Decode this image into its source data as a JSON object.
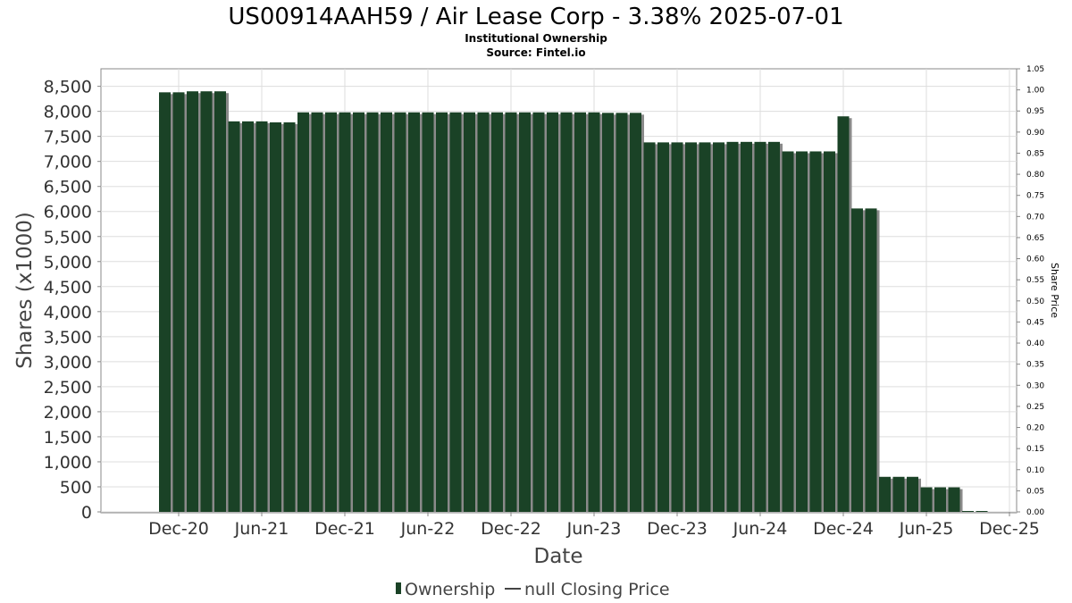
{
  "chart_data": {
    "type": "bar",
    "title": "US00914AAH59 / Air Lease Corp - 3.38% 2025-07-01",
    "subtitle_lines": [
      "Institutional Ownership",
      "Source: Fintel.io"
    ],
    "xlabel": "Date",
    "ylabel": "Shares (x1000)",
    "y2label": "Share Price",
    "ylim": [
      0,
      8850
    ],
    "y_ticks": [
      "0",
      "500",
      "1,000",
      "1,500",
      "2,000",
      "2,500",
      "3,000",
      "3,500",
      "4,000",
      "4,500",
      "5,000",
      "5,500",
      "6,000",
      "6,500",
      "7,000",
      "7,500",
      "8,000",
      "8,500"
    ],
    "y2lim": [
      0,
      1.05
    ],
    "y2_ticks": [
      "0.00",
      "0.05",
      "0.10",
      "0.15",
      "0.20",
      "0.25",
      "0.30",
      "0.35",
      "0.40",
      "0.45",
      "0.50",
      "0.55",
      "0.60",
      "0.65",
      "0.70",
      "0.75",
      "0.80",
      "0.85",
      "0.90",
      "0.95",
      "1.00",
      "1.05"
    ],
    "x_ticks": [
      "Dec-20",
      "Jun-21",
      "Dec-21",
      "Jun-22",
      "Dec-22",
      "Jun-23",
      "Dec-23",
      "Jun-24",
      "Dec-24",
      "Jun-25",
      "Dec-25"
    ],
    "x_tick_months": [
      0,
      6,
      12,
      18,
      24,
      30,
      36,
      42,
      48,
      54,
      60
    ],
    "x_domain_months": [
      -3,
      60
    ],
    "grid": true,
    "legend_position": "bottom",
    "legend": [
      {
        "label": "Ownership",
        "marker": "bar"
      },
      {
        "label": "null Closing Price",
        "marker": "line"
      }
    ],
    "colors": {
      "bar": "#1a4226",
      "bar_shadow": "#8a8a8a"
    },
    "series": [
      {
        "name": "Ownership",
        "x_months": [
          -1,
          0,
          1,
          2,
          3,
          4,
          5,
          6,
          7,
          8,
          9,
          10,
          11,
          12,
          13,
          14,
          15,
          16,
          17,
          18,
          19,
          20,
          21,
          22,
          23,
          24,
          25,
          26,
          27,
          28,
          29,
          30,
          31,
          32,
          33,
          34,
          35,
          36,
          37,
          38,
          39,
          40,
          41,
          42,
          43,
          44,
          45,
          46,
          47,
          48,
          49,
          50,
          51,
          52,
          53,
          54,
          55,
          56,
          57,
          58
        ],
        "values": [
          8380,
          8380,
          8400,
          8400,
          8400,
          7800,
          7800,
          7800,
          7780,
          7780,
          7980,
          7980,
          7980,
          7980,
          7980,
          7980,
          7980,
          7980,
          7980,
          7980,
          7980,
          7980,
          7980,
          7980,
          7980,
          7980,
          7980,
          7980,
          7980,
          7980,
          7980,
          7980,
          7970,
          7970,
          7970,
          7380,
          7380,
          7380,
          7380,
          7380,
          7380,
          7390,
          7390,
          7390,
          7390,
          7200,
          7200,
          7200,
          7200,
          7900,
          6060,
          6060,
          700,
          700,
          700,
          490,
          490,
          490,
          0,
          0
        ]
      }
    ]
  }
}
